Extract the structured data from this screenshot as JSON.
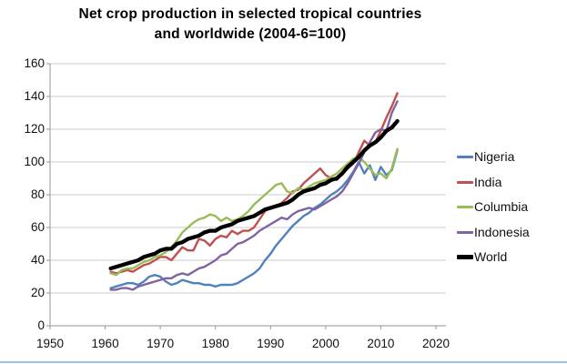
{
  "title": {
    "line1": "Net crop production in selected tropical countries",
    "line2": "and worldwide (2004-6=100)"
  },
  "colors": {
    "axis": "#A6A6A6",
    "grid": "#CBCBCB",
    "text": "#000000",
    "bottom_border": "#9DC3E6",
    "nigeria": "#4F81BD",
    "india": "#C0504D",
    "columbia": "#9BBB59",
    "indonesia": "#8064A2",
    "world": "#000000"
  },
  "chart_data": {
    "type": "line",
    "title": "Net crop production in selected tropical countries and worldwide (2004-6=100)",
    "xlabel": "",
    "ylabel": "",
    "xlim": [
      1950,
      2021.8
    ],
    "ylim": [
      0,
      160
    ],
    "x_ticks": [
      1950,
      1960,
      1970,
      1980,
      1990,
      2000,
      2010,
      2020
    ],
    "y_ticks": [
      0,
      20,
      40,
      60,
      80,
      100,
      120,
      140,
      160
    ],
    "grid": "horizontal",
    "legend_position": "right",
    "x": [
      1961,
      1962,
      1963,
      1964,
      1965,
      1966,
      1967,
      1968,
      1969,
      1970,
      1971,
      1972,
      1973,
      1974,
      1975,
      1976,
      1977,
      1978,
      1979,
      1980,
      1981,
      1982,
      1983,
      1984,
      1985,
      1986,
      1987,
      1988,
      1989,
      1990,
      1991,
      1992,
      1993,
      1994,
      1995,
      1996,
      1997,
      1998,
      1999,
      2000,
      2001,
      2002,
      2003,
      2004,
      2005,
      2006,
      2007,
      2008,
      2009,
      2010,
      2011,
      2012,
      2013
    ],
    "series": [
      {
        "name": "Nigeria",
        "color": "#4F81BD",
        "stroke_width": 2.4,
        "values": [
          23,
          24,
          25,
          26,
          26,
          25,
          27,
          30,
          31,
          30,
          27,
          25,
          26,
          28,
          27,
          26,
          26,
          25,
          25,
          24,
          25,
          25,
          25,
          26,
          28,
          30,
          32,
          35,
          40,
          44,
          49,
          53,
          57,
          61,
          64,
          67,
          69,
          72,
          74,
          77,
          80,
          82,
          85,
          89,
          94,
          100,
          93,
          98,
          89,
          97,
          92,
          95,
          107
        ]
      },
      {
        "name": "India",
        "color": "#C0504D",
        "stroke_width": 2.4,
        "values": [
          33,
          32,
          33,
          34,
          33,
          35,
          37,
          38,
          40,
          42,
          42,
          40,
          44,
          48,
          46,
          46,
          53,
          52,
          49,
          53,
          55,
          54,
          58,
          56,
          58,
          58,
          60,
          65,
          70,
          72,
          73,
          75,
          78,
          82,
          83,
          87,
          90,
          93,
          96,
          92,
          90,
          89,
          93,
          96,
          99,
          106,
          113,
          110,
          112,
          119,
          127,
          134,
          142
        ]
      },
      {
        "name": "Columbia",
        "color": "#9BBB59",
        "stroke_width": 2.4,
        "values": [
          32,
          31,
          34,
          35,
          35,
          37,
          39,
          40,
          42,
          43,
          45,
          48,
          52,
          57,
          60,
          63,
          65,
          66,
          68,
          67,
          64,
          66,
          64,
          65,
          67,
          70,
          74,
          77,
          80,
          83,
          86,
          87,
          82,
          81,
          84,
          83,
          85,
          87,
          88,
          89,
          91,
          93,
          96,
          99,
          102,
          103,
          100,
          96,
          92,
          93,
          90,
          96,
          108
        ]
      },
      {
        "name": "Indonesia",
        "color": "#8064A2",
        "stroke_width": 2.4,
        "values": [
          22,
          22,
          23,
          23,
          22,
          24,
          25,
          26,
          27,
          28,
          29,
          29,
          31,
          32,
          31,
          33,
          35,
          36,
          38,
          40,
          43,
          44,
          47,
          50,
          51,
          53,
          55,
          58,
          60,
          62,
          64,
          66,
          65,
          68,
          70,
          71,
          72,
          71,
          73,
          75,
          77,
          79,
          82,
          87,
          93,
          99,
          106,
          112,
          118,
          120,
          119,
          130,
          137
        ]
      },
      {
        "name": "World",
        "color": "#000000",
        "stroke_width": 4.3,
        "values": [
          35,
          36,
          37,
          38,
          39,
          40,
          42,
          43,
          44,
          46,
          47,
          47,
          50,
          51,
          53,
          54,
          55,
          57,
          58,
          58,
          60,
          61,
          62,
          64,
          65,
          66,
          67,
          69,
          71,
          72,
          73,
          74,
          75,
          77,
          80,
          82,
          83,
          84,
          86,
          87,
          89,
          90,
          93,
          97,
          100,
          103,
          107,
          110,
          112,
          115,
          119,
          121,
          125
        ]
      }
    ]
  },
  "legend": {
    "items": [
      "Nigeria",
      "India",
      "Columbia",
      "Indonesia",
      "World"
    ]
  }
}
